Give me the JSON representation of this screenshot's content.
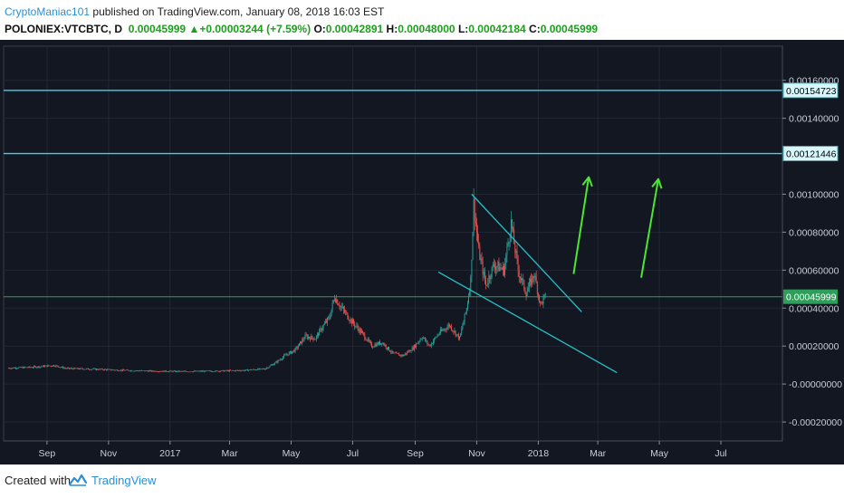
{
  "header": {
    "author": "CryptoManiac101",
    "published": " published on TradingView.com, January 08, 2018 16:03 EST",
    "symbol": "POLONIEX:VTCBTC, D",
    "last": "0.00045999",
    "change_arrow": "▲",
    "change": "+0.00003244 (+7.59%)",
    "o_label": "O:",
    "o": "0.00042891",
    "h_label": "H:",
    "h": "0.00048000",
    "l_label": "L:",
    "l": "0.00042184",
    "c_label": "C:",
    "c": "0.00045999"
  },
  "footer": {
    "created_with": "Created with",
    "brand": "TradingView",
    "logo_icon": "tradingview-logo-icon"
  },
  "chart_data": {
    "type": "candlestick",
    "title": "",
    "xlabel": "",
    "ylabel": "",
    "x_ticks": [
      "Sep",
      "Nov",
      "2017",
      "Mar",
      "May",
      "Jul",
      "Sep",
      "Nov",
      "2018",
      "Mar",
      "May",
      "Jul"
    ],
    "x_tick_dates": [
      "2016-09-01",
      "2016-11-01",
      "2017-01-01",
      "2017-03-01",
      "2017-05-01",
      "2017-07-01",
      "2017-09-01",
      "2017-11-01",
      "2018-01-01",
      "2018-03-01",
      "2018-05-01",
      "2018-07-01"
    ],
    "x_range": [
      "2016-07-20",
      "2018-08-31"
    ],
    "y_ticks": [
      "0.00160000",
      "0.00140000",
      "0.00100000",
      "0.00080000",
      "0.00060000",
      "0.00040000",
      "0.00020000",
      "-0.00000000",
      "-0.00020000"
    ],
    "y_tick_values": [
      0.0016,
      0.0014,
      0.001,
      0.0008,
      0.0006,
      0.0004,
      0.0002,
      0.0,
      -0.0002
    ],
    "ylim": [
      -0.0003,
      0.00178
    ],
    "grid": true,
    "colors": {
      "background": "#131722",
      "grid": "#232734",
      "up": "#26a69a",
      "down": "#ef5350",
      "level_line": "#3fd0ea",
      "trendline": "#26c0c8",
      "arrow": "#4ce633",
      "last_price": "#2e9e5b"
    },
    "horizontal_levels": [
      {
        "value": 0.00154723,
        "label": "0.00154723"
      },
      {
        "value": 0.00121446,
        "label": "0.00121446"
      }
    ],
    "last_price": {
      "value": 0.00045999,
      "label": "0.00045999"
    },
    "trendlines": [
      {
        "from": [
          "2017-10-27",
          0.001
        ],
        "to": [
          "2018-02-13",
          0.00038
        ]
      },
      {
        "from": [
          "2017-09-24",
          0.00059
        ],
        "to": [
          "2018-03-20",
          6e-05
        ]
      }
    ],
    "arrows": [
      {
        "from": [
          "2018-02-05",
          0.00058
        ],
        "to": [
          "2018-02-20",
          0.00109
        ]
      },
      {
        "from": [
          "2018-04-13",
          0.00056
        ],
        "to": [
          "2018-04-30",
          0.00108
        ]
      }
    ],
    "series": [
      {
        "name": "",
        "points": [
          [
            "2016-07-25",
            8.4e-05
          ],
          [
            "2016-08-15",
            8.8e-05
          ],
          [
            "2016-09-08",
            9.8e-05
          ],
          [
            "2016-09-20",
            8.2e-05
          ],
          [
            "2016-10-20",
            7.8e-05
          ],
          [
            "2016-11-15",
            7.2e-05
          ],
          [
            "2016-12-15",
            6.8e-05
          ],
          [
            "2017-01-15",
            6.6e-05
          ],
          [
            "2017-02-15",
            6.8e-05
          ],
          [
            "2017-03-15",
            7.2e-05
          ],
          [
            "2017-04-05",
            8e-05
          ],
          [
            "2017-04-15",
            0.00011
          ],
          [
            "2017-04-25",
            0.00015
          ],
          [
            "2017-05-05",
            0.00018
          ],
          [
            "2017-05-15",
            0.00025
          ],
          [
            "2017-05-25",
            0.00024
          ],
          [
            "2017-06-01",
            0.0003
          ],
          [
            "2017-06-08",
            0.00035
          ],
          [
            "2017-06-13",
            0.00046
          ],
          [
            "2017-06-20",
            0.0004
          ],
          [
            "2017-06-30",
            0.00033
          ],
          [
            "2017-07-10",
            0.00027
          ],
          [
            "2017-07-20",
            0.0002
          ],
          [
            "2017-07-30",
            0.00022
          ],
          [
            "2017-08-10",
            0.00016
          ],
          [
            "2017-08-20",
            0.00015
          ],
          [
            "2017-08-30",
            0.00019
          ],
          [
            "2017-09-08",
            0.00025
          ],
          [
            "2017-09-15",
            0.0002
          ],
          [
            "2017-09-25",
            0.00027
          ],
          [
            "2017-10-05",
            0.00031
          ],
          [
            "2017-10-15",
            0.00024
          ],
          [
            "2017-10-22",
            0.0004
          ],
          [
            "2017-10-26",
            0.00055
          ],
          [
            "2017-10-29",
            0.00095
          ],
          [
            "2017-11-03",
            0.0007
          ],
          [
            "2017-11-10",
            0.00052
          ],
          [
            "2017-11-18",
            0.00063
          ],
          [
            "2017-11-28",
            0.0006
          ],
          [
            "2017-12-05",
            0.00085
          ],
          [
            "2017-12-12",
            0.0006
          ],
          [
            "2017-12-20",
            0.00048
          ],
          [
            "2017-12-28",
            0.00058
          ],
          [
            "2018-01-03",
            0.00042
          ],
          [
            "2018-01-08",
            0.00046
          ]
        ]
      }
    ]
  }
}
